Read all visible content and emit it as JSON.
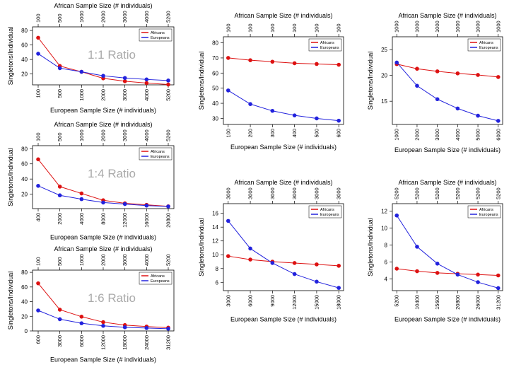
{
  "chart_data": [
    {
      "type": "line",
      "ratio_label": "1:1 Ratio",
      "top_axis_title": "African Sample Size (# individuals)",
      "top_ticks": [
        "100",
        "500",
        "1000",
        "2000",
        "3000",
        "4000",
        "5200"
      ],
      "x": [
        100,
        500,
        1000,
        2000,
        3000,
        4000,
        5200
      ],
      "xlabel": "European Sample Size (# individuals)",
      "xticks": [
        "100",
        "500",
        "1000",
        "2000",
        "3000",
        "4000",
        "5200"
      ],
      "ylabel": "Singletons/Individual",
      "yticks": [
        20,
        40,
        60,
        80
      ],
      "ylim": [
        5,
        85
      ],
      "legend": [
        "Africans",
        "Europeans"
      ],
      "series": [
        {
          "name": "Africans",
          "color": "#dd1111",
          "values": [
            70,
            31,
            23,
            14,
            10,
            7.5,
            5.5
          ]
        },
        {
          "name": "Europeans",
          "color": "#2222dd",
          "values": [
            48,
            28,
            23,
            17.5,
            14.5,
            12.5,
            11
          ]
        }
      ]
    },
    {
      "type": "line",
      "ratio_label": "",
      "top_axis_title": "African Sample Size (# individuals)",
      "top_ticks": [
        "100",
        "100",
        "100",
        "100",
        "100",
        "100"
      ],
      "x": [
        100,
        200,
        300,
        400,
        500,
        600
      ],
      "xlabel": "European Sample Size (# individuals)",
      "xticks": [
        "100",
        "200",
        "300",
        "400",
        "500",
        "600"
      ],
      "ylabel": "Singletons/Individual",
      "yticks": [
        30,
        40,
        50,
        60,
        70,
        80
      ],
      "ylim": [
        26,
        84
      ],
      "legend": [
        "Africans",
        "Europeans"
      ],
      "series": [
        {
          "name": "Africans",
          "color": "#dd1111",
          "values": [
            70,
            68.5,
            67.5,
            66.5,
            66,
            65.5
          ]
        },
        {
          "name": "Europeans",
          "color": "#2222dd",
          "values": [
            48.5,
            39.5,
            35,
            32,
            30,
            28.5
          ]
        }
      ]
    },
    {
      "type": "line",
      "ratio_label": "",
      "top_axis_title": "African Sample Size (# individuals)",
      "top_ticks": [
        "1000",
        "1000",
        "1000",
        "1000",
        "1000",
        "1000"
      ],
      "x": [
        1000,
        2000,
        3000,
        4000,
        5000,
        6000
      ],
      "xlabel": "European Sample Size (# individuals)",
      "xticks": [
        "1000",
        "2000",
        "3000",
        "4000",
        "5000",
        "6000"
      ],
      "ylabel": "Singletons/Individual",
      "yticks": [
        15,
        20,
        25
      ],
      "ylim": [
        10.5,
        27.5
      ],
      "legend": [
        "Africans",
        "Europeans"
      ],
      "series": [
        {
          "name": "Africans",
          "color": "#dd1111",
          "values": [
            22.2,
            21.3,
            20.8,
            20.4,
            20.1,
            19.7
          ]
        },
        {
          "name": "Europeans",
          "color": "#2222dd",
          "values": [
            22.5,
            18,
            15.4,
            13.6,
            12.2,
            11.2
          ]
        }
      ]
    },
    {
      "type": "line",
      "ratio_label": "1:4 Ratio",
      "top_axis_title": "African Sample Size (# individuals)",
      "top_ticks": [
        "100",
        "500",
        "1000",
        "2000",
        "3000",
        "4000",
        "5200"
      ],
      "x": [
        400,
        2000,
        4000,
        8000,
        12000,
        16000,
        20800
      ],
      "xlabel": "European Sample Size (# individuals)",
      "xticks": [
        "400",
        "2000",
        "4000",
        "8000",
        "12000",
        "16000",
        "20800"
      ],
      "ylabel": "Singletons/Individual",
      "yticks": [
        20,
        40,
        60,
        80
      ],
      "ylim": [
        1,
        84
      ],
      "legend": [
        "Africans",
        "Europeans"
      ],
      "series": [
        {
          "name": "Africans",
          "color": "#dd1111",
          "values": [
            66,
            30,
            21,
            12,
            8,
            6,
            4
          ]
        },
        {
          "name": "Europeans",
          "color": "#2222dd",
          "values": [
            31,
            18.5,
            13.5,
            9,
            7,
            5,
            3.8
          ]
        }
      ]
    },
    {
      "type": "line",
      "ratio_label": "",
      "top_axis_title": "African Sample Size (# individuals)",
      "top_ticks": [
        "3000",
        "3000",
        "3000",
        "3000",
        "3000",
        "3000"
      ],
      "x": [
        3000,
        6000,
        9000,
        12000,
        15000,
        18000
      ],
      "xlabel": "European Sample Size (# individuals)",
      "xticks": [
        "3000",
        "6000",
        "9000",
        "12000",
        "15000",
        "18000"
      ],
      "ylabel": "Singletons/Individual",
      "yticks": [
        6,
        8,
        10,
        12,
        14,
        16
      ],
      "ylim": [
        4.8,
        17.4
      ],
      "legend": [
        "Africans",
        "Europeans"
      ],
      "series": [
        {
          "name": "Africans",
          "color": "#dd1111",
          "values": [
            9.8,
            9.3,
            9.0,
            8.8,
            8.6,
            8.4
          ]
        },
        {
          "name": "Europeans",
          "color": "#2222dd",
          "values": [
            14.9,
            10.9,
            8.8,
            7.2,
            6.1,
            5.2
          ]
        }
      ]
    },
    {
      "type": "line",
      "ratio_label": "",
      "top_axis_title": "African Sample Size (# individuals)",
      "top_ticks": [
        "5200",
        "5200",
        "5200",
        "5200",
        "5200",
        "5200"
      ],
      "x": [
        5200,
        10400,
        15600,
        20800,
        26000,
        31200
      ],
      "xlabel": "European Sample Size (# individuals)",
      "xticks": [
        "5200",
        "10400",
        "15600",
        "20800",
        "26000",
        "31200"
      ],
      "ylabel": "Singletons/Individual",
      "yticks": [
        4,
        6,
        8,
        10,
        12
      ],
      "ylim": [
        2.6,
        12.9
      ],
      "legend": [
        "Africans",
        "Europeans"
      ],
      "series": [
        {
          "name": "Africans",
          "color": "#dd1111",
          "values": [
            5.2,
            4.9,
            4.7,
            4.6,
            4.5,
            4.4
          ]
        },
        {
          "name": "Europeans",
          "color": "#2222dd",
          "values": [
            11.5,
            7.8,
            5.8,
            4.5,
            3.6,
            2.9
          ]
        }
      ]
    },
    {
      "type": "line",
      "ratio_label": "1:6 Ratio",
      "top_axis_title": "African Sample Size (# individuals)",
      "top_ticks": [
        "100",
        "500",
        "1000",
        "2000",
        "3000",
        "4000",
        "5200"
      ],
      "x": [
        600,
        3000,
        6000,
        12000,
        18000,
        24000,
        31200
      ],
      "xlabel": "European Sample Size (# individuals)",
      "xticks": [
        "600",
        "3000",
        "6000",
        "12000",
        "18000",
        "24000",
        "31200"
      ],
      "ylabel": "Singletons/Individual",
      "yticks": [
        0,
        20,
        40,
        60,
        80
      ],
      "ylim": [
        0,
        83
      ],
      "legend": [
        "Africans",
        "Europeans"
      ],
      "series": [
        {
          "name": "Africans",
          "color": "#dd1111",
          "values": [
            65,
            29,
            19.5,
            12,
            8,
            6,
            4.5
          ]
        },
        {
          "name": "Europeans",
          "color": "#2222dd",
          "values": [
            28,
            16,
            10.5,
            7,
            5,
            4,
            3
          ]
        }
      ]
    }
  ]
}
